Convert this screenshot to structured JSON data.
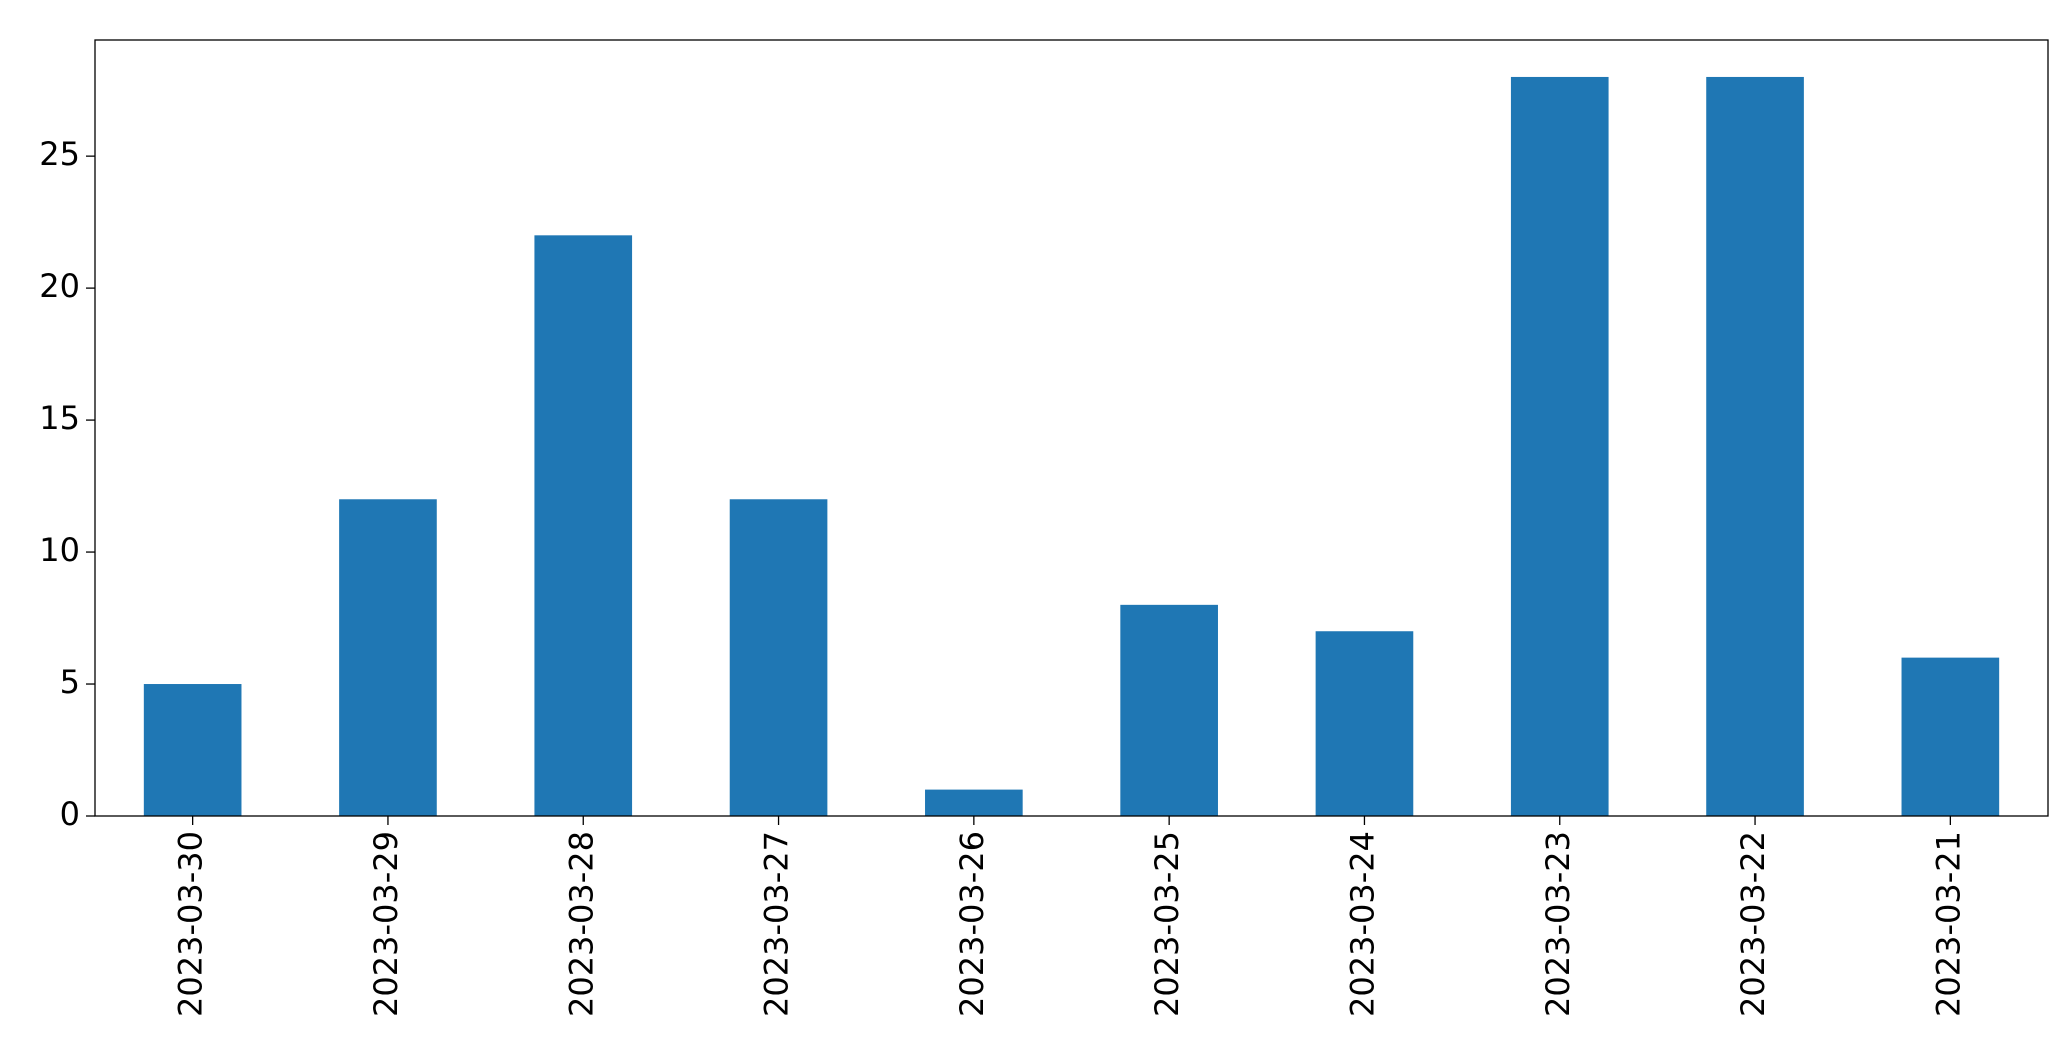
{
  "chart_data": {
    "type": "bar",
    "categories": [
      "2023-03-30",
      "2023-03-29",
      "2023-03-28",
      "2023-03-27",
      "2023-03-26",
      "2023-03-25",
      "2023-03-24",
      "2023-03-23",
      "2023-03-22",
      "2023-03-21"
    ],
    "values": [
      5,
      12,
      22,
      12,
      1,
      8,
      7,
      28,
      28,
      6
    ],
    "color": "#1f77b4",
    "ylim": [
      0,
      29.4
    ],
    "yticks": [
      0,
      5,
      10,
      15,
      20,
      25
    ],
    "grid": false
  }
}
